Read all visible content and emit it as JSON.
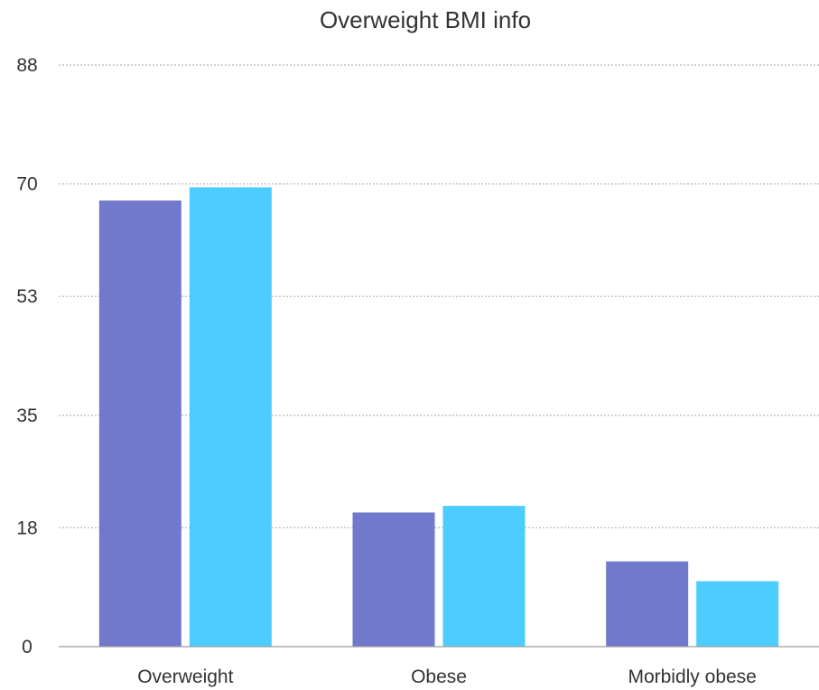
{
  "chart_data": {
    "type": "bar",
    "title": "Overweight BMI info",
    "xlabel": "",
    "ylabel": "",
    "categories": [
      "Overweight",
      "Obese",
      "Morbidly obese"
    ],
    "series": [
      {
        "values": [
          67.5,
          20.3,
          12.9
        ],
        "color": "#7079cc"
      },
      {
        "values": [
          69.5,
          21.3,
          9.9
        ],
        "color": "#4dcdff"
      }
    ],
    "yticks": [
      0,
      18,
      35,
      53,
      70,
      88
    ],
    "ylim": [
      0,
      88
    ],
    "grid": true,
    "legend": "none"
  }
}
